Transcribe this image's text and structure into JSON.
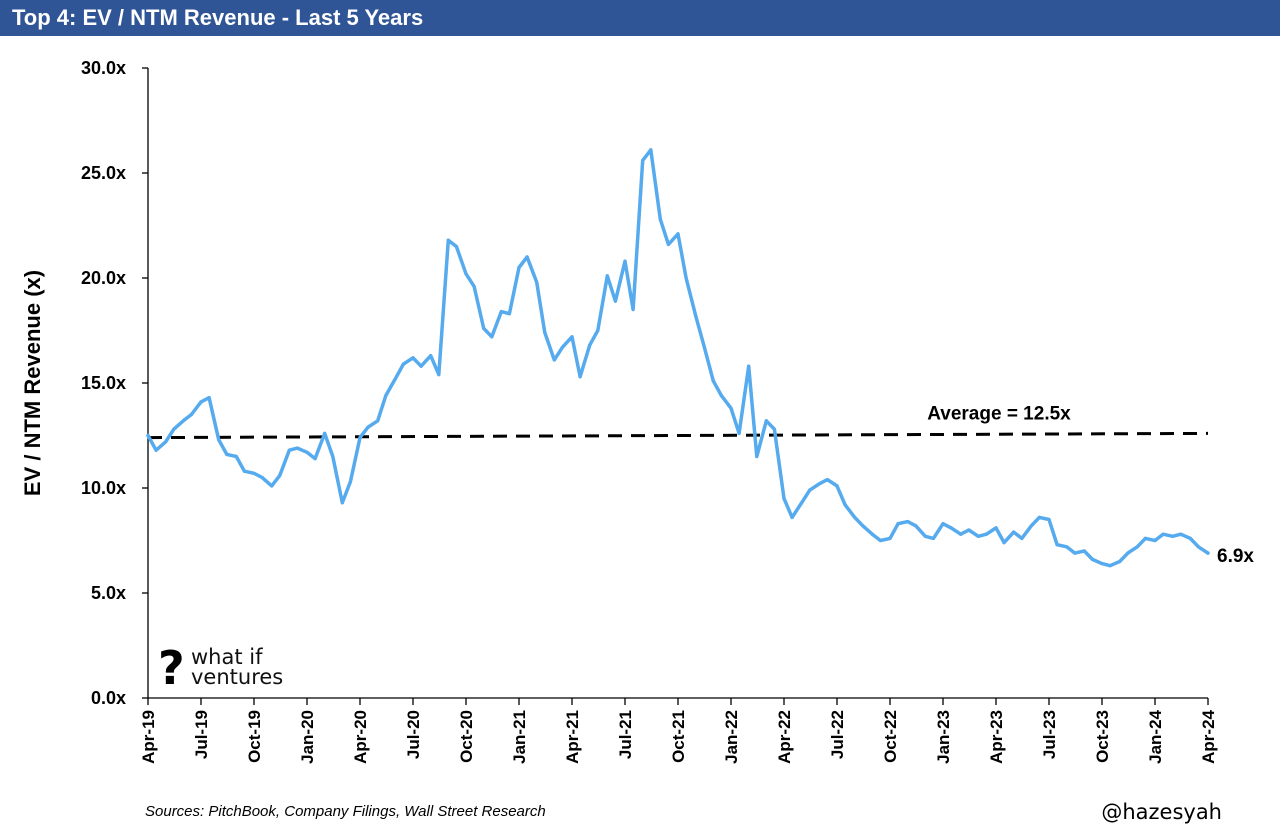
{
  "header": {
    "title": "Top 4: EV / NTM Revenue - Last 5 Years"
  },
  "footer": {
    "sources": "Sources: PitchBook, Company Filings, Wall Street Research",
    "handle": "@hazesyah"
  },
  "logo": {
    "mark": "?",
    "line1": "what if",
    "line2": "ventures"
  },
  "colors": {
    "title_bar": "#2f5597",
    "series": "#56aaee",
    "average_line": "#000000"
  },
  "chart_data": {
    "type": "line",
    "title": "Top 4: EV / NTM Revenue - Last 5 Years",
    "xlabel": "",
    "ylabel": "EV / NTM Revenue (x)",
    "ylim": [
      0,
      30
    ],
    "yticks": [
      "0.0x",
      "5.0x",
      "10.0x",
      "15.0x",
      "20.0x",
      "25.0x",
      "30.0x"
    ],
    "xlim": [
      "2019-04",
      "2024-04"
    ],
    "xticks": [
      "Apr-19",
      "Jul-19",
      "Oct-19",
      "Jan-20",
      "Apr-20",
      "Jul-20",
      "Oct-20",
      "Jan-21",
      "Apr-21",
      "Jul-21",
      "Oct-21",
      "Jan-22",
      "Apr-22",
      "Jul-22",
      "Oct-22",
      "Jan-23",
      "Apr-23",
      "Jul-23",
      "Oct-23",
      "Jan-24",
      "Apr-24"
    ],
    "grid": false,
    "series": [
      {
        "values": [
          [
            "2019-04-01",
            12.5
          ],
          [
            "2019-04-15",
            11.8
          ],
          [
            "2019-05-01",
            12.2
          ],
          [
            "2019-05-15",
            12.8
          ],
          [
            "2019-06-01",
            13.2
          ],
          [
            "2019-06-15",
            13.5
          ],
          [
            "2019-07-01",
            14.1
          ],
          [
            "2019-07-15",
            14.3
          ],
          [
            "2019-08-01",
            12.3
          ],
          [
            "2019-08-15",
            11.6
          ],
          [
            "2019-09-01",
            11.5
          ],
          [
            "2019-09-15",
            10.8
          ],
          [
            "2019-10-01",
            10.7
          ],
          [
            "2019-10-15",
            10.5
          ],
          [
            "2019-11-01",
            10.1
          ],
          [
            "2019-11-15",
            10.6
          ],
          [
            "2019-12-01",
            11.8
          ],
          [
            "2019-12-15",
            11.9
          ],
          [
            "2020-01-01",
            11.7
          ],
          [
            "2020-01-15",
            11.4
          ],
          [
            "2020-02-01",
            12.6
          ],
          [
            "2020-02-15",
            11.5
          ],
          [
            "2020-03-01",
            9.3
          ],
          [
            "2020-03-15",
            10.3
          ],
          [
            "2020-04-01",
            12.4
          ],
          [
            "2020-04-15",
            12.9
          ],
          [
            "2020-05-01",
            13.2
          ],
          [
            "2020-05-15",
            14.4
          ],
          [
            "2020-06-01",
            15.2
          ],
          [
            "2020-06-15",
            15.9
          ],
          [
            "2020-07-01",
            16.2
          ],
          [
            "2020-07-15",
            15.8
          ],
          [
            "2020-08-01",
            16.3
          ],
          [
            "2020-08-15",
            15.4
          ],
          [
            "2020-09-01",
            21.8
          ],
          [
            "2020-09-15",
            21.5
          ],
          [
            "2020-10-01",
            20.2
          ],
          [
            "2020-10-15",
            19.6
          ],
          [
            "2020-11-01",
            17.6
          ],
          [
            "2020-11-15",
            17.2
          ],
          [
            "2020-12-01",
            18.4
          ],
          [
            "2020-12-15",
            18.3
          ],
          [
            "2021-01-01",
            20.5
          ],
          [
            "2021-01-15",
            21.0
          ],
          [
            "2021-02-01",
            19.8
          ],
          [
            "2021-02-15",
            17.4
          ],
          [
            "2021-03-01",
            16.1
          ],
          [
            "2021-03-15",
            16.7
          ],
          [
            "2021-04-01",
            17.2
          ],
          [
            "2021-04-15",
            15.3
          ],
          [
            "2021-05-01",
            16.8
          ],
          [
            "2021-05-15",
            17.5
          ],
          [
            "2021-06-01",
            20.1
          ],
          [
            "2021-06-15",
            18.9
          ],
          [
            "2021-07-01",
            20.8
          ],
          [
            "2021-07-15",
            18.5
          ],
          [
            "2021-08-01",
            25.6
          ],
          [
            "2021-08-15",
            26.1
          ],
          [
            "2021-09-01",
            22.8
          ],
          [
            "2021-09-15",
            21.6
          ],
          [
            "2021-10-01",
            22.1
          ],
          [
            "2021-10-15",
            20.0
          ],
          [
            "2021-11-01",
            18.2
          ],
          [
            "2021-11-15",
            16.8
          ],
          [
            "2021-12-01",
            15.1
          ],
          [
            "2021-12-15",
            14.4
          ],
          [
            "2022-01-01",
            13.8
          ],
          [
            "2022-01-15",
            12.6
          ],
          [
            "2022-02-01",
            15.8
          ],
          [
            "2022-02-15",
            11.5
          ],
          [
            "2022-03-01",
            13.2
          ],
          [
            "2022-03-15",
            12.8
          ],
          [
            "2022-04-01",
            9.5
          ],
          [
            "2022-04-15",
            8.6
          ],
          [
            "2022-05-01",
            9.3
          ],
          [
            "2022-05-15",
            9.9
          ],
          [
            "2022-06-01",
            10.2
          ],
          [
            "2022-06-15",
            10.4
          ],
          [
            "2022-07-01",
            10.1
          ],
          [
            "2022-07-15",
            9.2
          ],
          [
            "2022-08-01",
            8.6
          ],
          [
            "2022-08-15",
            8.2
          ],
          [
            "2022-09-01",
            7.8
          ],
          [
            "2022-09-15",
            7.5
          ],
          [
            "2022-10-01",
            7.6
          ],
          [
            "2022-10-15",
            8.3
          ],
          [
            "2022-11-01",
            8.4
          ],
          [
            "2022-11-15",
            8.2
          ],
          [
            "2022-12-01",
            7.7
          ],
          [
            "2022-12-15",
            7.6
          ],
          [
            "2023-01-01",
            8.3
          ],
          [
            "2023-01-15",
            8.1
          ],
          [
            "2023-02-01",
            7.8
          ],
          [
            "2023-02-15",
            8.0
          ],
          [
            "2023-03-01",
            7.7
          ],
          [
            "2023-03-15",
            7.8
          ],
          [
            "2023-04-01",
            8.1
          ],
          [
            "2023-04-15",
            7.4
          ],
          [
            "2023-05-01",
            7.9
          ],
          [
            "2023-05-15",
            7.6
          ],
          [
            "2023-06-01",
            8.2
          ],
          [
            "2023-06-15",
            8.6
          ],
          [
            "2023-07-01",
            8.5
          ],
          [
            "2023-07-15",
            7.3
          ],
          [
            "2023-08-01",
            7.2
          ],
          [
            "2023-08-15",
            6.9
          ],
          [
            "2023-09-01",
            7.0
          ],
          [
            "2023-09-15",
            6.6
          ],
          [
            "2023-10-01",
            6.4
          ],
          [
            "2023-10-15",
            6.3
          ],
          [
            "2023-11-01",
            6.5
          ],
          [
            "2023-11-15",
            6.9
          ],
          [
            "2023-12-01",
            7.2
          ],
          [
            "2023-12-15",
            7.6
          ],
          [
            "2024-01-01",
            7.5
          ],
          [
            "2024-01-15",
            7.8
          ],
          [
            "2024-02-01",
            7.7
          ],
          [
            "2024-02-15",
            7.8
          ],
          [
            "2024-03-01",
            7.6
          ],
          [
            "2024-03-15",
            7.2
          ],
          [
            "2024-04-01",
            6.9
          ]
        ]
      }
    ],
    "average": {
      "value": 12.5,
      "label": "Average = 12.5x",
      "start": [
        "2019-04-01",
        12.4
      ],
      "end": [
        "2024-04-01",
        12.6
      ]
    },
    "end_label": "6.9x"
  }
}
